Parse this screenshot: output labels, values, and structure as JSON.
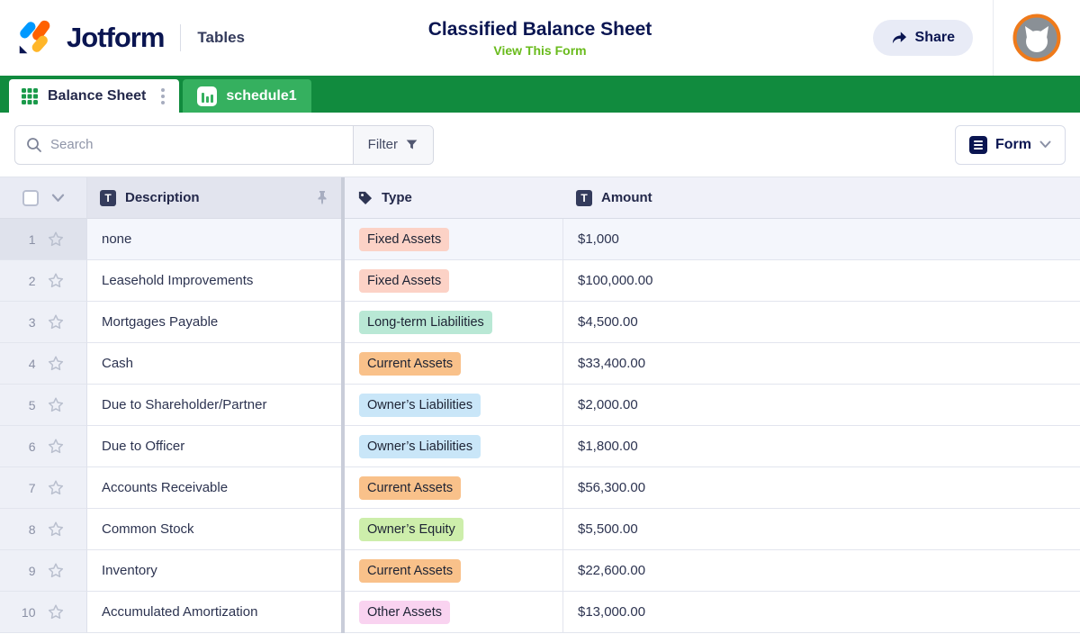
{
  "header": {
    "brand": "Jotform",
    "product": "Tables",
    "title": "Classified Balance Sheet",
    "view_form_link": "View This Form",
    "share_label": "Share"
  },
  "tabs": [
    {
      "label": "Balance Sheet",
      "type": "table",
      "active": true
    },
    {
      "label": "schedule1",
      "type": "report",
      "active": false
    }
  ],
  "toolbar": {
    "search_placeholder": "Search",
    "filter_label": "Filter",
    "view_button_label": "Form"
  },
  "table": {
    "columns": [
      {
        "label": "Description",
        "icon": "text-icon",
        "pinned": true
      },
      {
        "label": "Type",
        "icon": "tag-icon"
      },
      {
        "label": "Amount",
        "icon": "text-icon"
      }
    ],
    "rows": [
      {
        "num": 1,
        "description": "none",
        "type": "Fixed Assets",
        "badge_color": "#fcd2c6",
        "amount": "$1,000"
      },
      {
        "num": 2,
        "description": "Leasehold Improvements",
        "type": "Fixed Assets",
        "badge_color": "#fcd2c6",
        "amount": "$100,000.00"
      },
      {
        "num": 3,
        "description": "Mortgages Payable",
        "type": "Long-term Liabilities",
        "badge_color": "#b9e8d5",
        "amount": "$4,500.00"
      },
      {
        "num": 4,
        "description": "Cash",
        "type": "Current Assets",
        "badge_color": "#f9c18a",
        "amount": "$33,400.00"
      },
      {
        "num": 5,
        "description": "Due to Shareholder/Partner",
        "type": "Owner’s Liabilities",
        "badge_color": "#c9e6f8",
        "amount": "$2,000.00"
      },
      {
        "num": 6,
        "description": "Due to Officer",
        "type": "Owner’s Liabilities",
        "badge_color": "#c9e6f8",
        "amount": "$1,800.00"
      },
      {
        "num": 7,
        "description": "Accounts Receivable",
        "type": "Current Assets",
        "badge_color": "#f9c18a",
        "amount": "$56,300.00"
      },
      {
        "num": 8,
        "description": "Common Stock",
        "type": "Owner’s Equity",
        "badge_color": "#cdeeab",
        "amount": "$5,500.00"
      },
      {
        "num": 9,
        "description": "Inventory",
        "type": "Current Assets",
        "badge_color": "#f9c18a",
        "amount": "$22,600.00"
      },
      {
        "num": 10,
        "description": "Accumulated Amortization",
        "type": "Other Assets",
        "badge_color": "#f9d3f0",
        "amount": "$13,000.00"
      }
    ]
  },
  "colors": {
    "brand_navy": "#0a1551",
    "tab_bar_green": "#118b3e",
    "report_tab_green": "#35b05f",
    "active_tab_icon_green": "#1a9a4a",
    "view_form_link_green": "#69bb1c",
    "share_button_bg": "#e8ebf6",
    "avatar_ring_orange": "#ef7a1a",
    "logo_blue": "#0099ff",
    "logo_orange": "#ff6100",
    "logo_amber": "#ffb629"
  }
}
